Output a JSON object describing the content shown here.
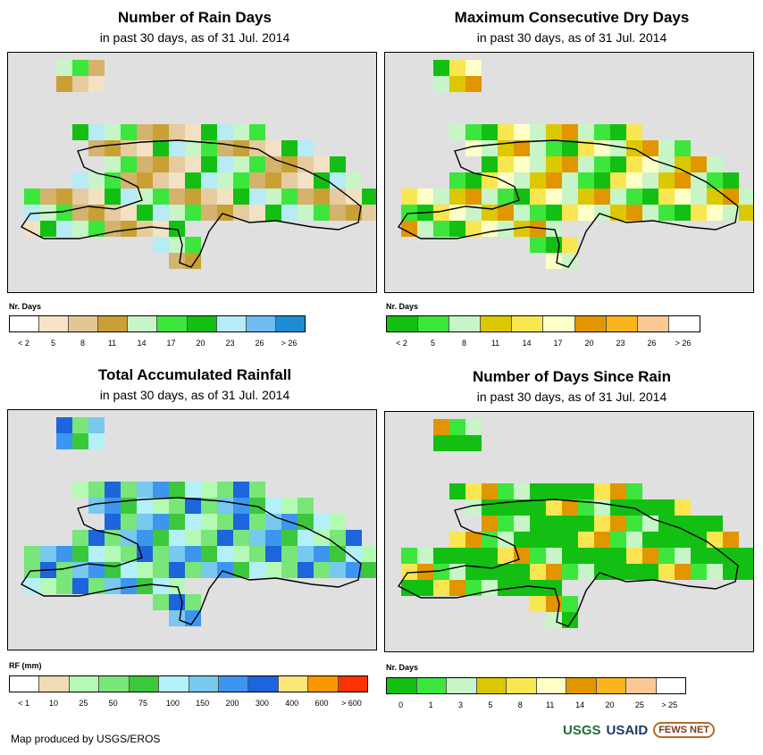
{
  "panels": [
    {
      "id": "rain-days",
      "title": "Number of Rain Days",
      "subtitle": "in past 30 days, as of 31 Jul. 2014",
      "legend_title": "Nr. Days",
      "legend_colors": [
        "#ffffff",
        "#f5e4c8",
        "#e2c796",
        "#c9a036",
        "#c7f5c7",
        "#3ce63c",
        "#14bf14",
        "#b7ebf5",
        "#6fbcf0",
        "#1e8cd2"
      ],
      "legend_labels": [
        "< 2",
        "5",
        "8",
        "11",
        "14",
        "17",
        "20",
        "23",
        "26",
        "> 26"
      ],
      "label_positions": "edges",
      "fill_palette": [
        "#e6cba0",
        "#f3e1c4",
        "#d3b36e",
        "#c9a036",
        "#c7f5c7",
        "#3ce63c",
        "#14bf14",
        "#b7ebf5"
      ]
    },
    {
      "id": "dry-days",
      "title": "Maximum Consecutive Dry Days",
      "subtitle": "in past 30 days, as of 31 Jul. 2014",
      "legend_title": "Nr. Days",
      "legend_colors": [
        "#14bf14",
        "#3ce63c",
        "#c7f5c7",
        "#dcc800",
        "#fae650",
        "#ffffc8",
        "#e19600",
        "#fab41e",
        "#fac896",
        "#ffffff"
      ],
      "legend_labels": [
        "< 2",
        "5",
        "8",
        "11",
        "14",
        "17",
        "20",
        "23",
        "26",
        "> 26"
      ],
      "label_positions": "edges",
      "fill_palette": [
        "#c7f5c7",
        "#dcc800",
        "#fae650",
        "#ffffc8",
        "#3ce63c",
        "#14bf14",
        "#e19600",
        "#c7f5c7"
      ]
    },
    {
      "id": "rainfall",
      "title": "Total Accumulated Rainfall",
      "subtitle": "in past 30 days, as of 31 Jul. 2014",
      "legend_title": "RF (mm)",
      "legend_colors": [
        "#ffffff",
        "#f0dcb4",
        "#b4fab4",
        "#78e678",
        "#3cc83c",
        "#b4f0fa",
        "#78c8f0",
        "#3c96f0",
        "#1e64dc",
        "#fae678",
        "#fa9600",
        "#fa3200"
      ],
      "legend_labels": [
        "< 1",
        "10",
        "25",
        "50",
        "75",
        "100",
        "150",
        "200",
        "300",
        "400",
        "600",
        "> 600"
      ],
      "label_positions": "edges",
      "fill_palette": [
        "#b4fab4",
        "#78e678",
        "#3cc83c",
        "#b4f0fa",
        "#78c8f0",
        "#3c96f0",
        "#1e64dc",
        "#78e678"
      ]
    },
    {
      "id": "since-rain",
      "title": "Number of Days Since Rain",
      "subtitle": "in past 30 days, as of 31 Jul. 2014",
      "legend_title": "Nr. Days",
      "legend_colors": [
        "#14bf14",
        "#3ce63c",
        "#c7f5c7",
        "#dcc800",
        "#fae650",
        "#ffffc8",
        "#e19600",
        "#fab41e",
        "#fac896",
        "#ffffff"
      ],
      "legend_labels": [
        "0",
        "1",
        "3",
        "5",
        "8",
        "11",
        "14",
        "20",
        "25",
        "> 25"
      ],
      "label_positions": "centers",
      "fill_palette": [
        "#14bf14",
        "#14bf14",
        "#14bf14",
        "#14bf14",
        "#3ce63c",
        "#c7f5c7",
        "#fae650",
        "#e19600"
      ]
    }
  ],
  "credit": "Map produced by USGS/EROS",
  "logos": {
    "usgs": "USGS",
    "usaid": "USAID",
    "fews": "FEWS NET"
  }
}
